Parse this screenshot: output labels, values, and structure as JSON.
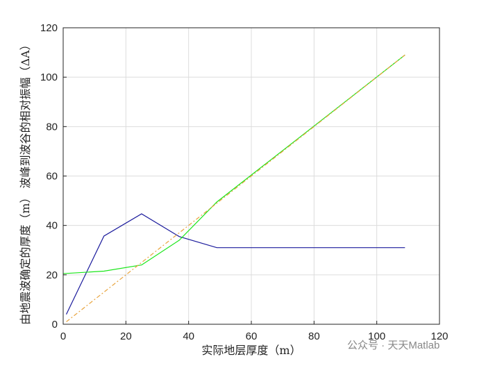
{
  "chart_data": {
    "type": "line",
    "xlabel": "实际地层厚度（m）",
    "ylabel": "由地震波确定的厚度（m） 波峰到波谷的相对振幅（ΔA）",
    "watermark": "公众号 · 天天Matlab",
    "xlim": [
      0,
      120
    ],
    "xticks": [
      0,
      20,
      40,
      60,
      80,
      100,
      120
    ],
    "ylim": [
      0,
      120
    ],
    "yticks": [
      0,
      20,
      40,
      60,
      80,
      100,
      120
    ],
    "grid": true,
    "series": [
      {
        "color": "#1a1a9c",
        "dash": "none",
        "x": [
          1,
          13,
          25,
          37,
          49,
          109
        ],
        "values": [
          4,
          35.7,
          44.7,
          35.5,
          31,
          31
        ]
      },
      {
        "color": "#19e619",
        "dash": "none",
        "x": [
          0,
          13,
          25,
          37,
          49,
          109
        ],
        "values": [
          20.5,
          21.5,
          24,
          34,
          49.5,
          109
        ]
      },
      {
        "color": "#e8a33c",
        "dash": "6 3 2 3",
        "x": [
          1,
          109
        ],
        "values": [
          1,
          109
        ]
      }
    ]
  }
}
